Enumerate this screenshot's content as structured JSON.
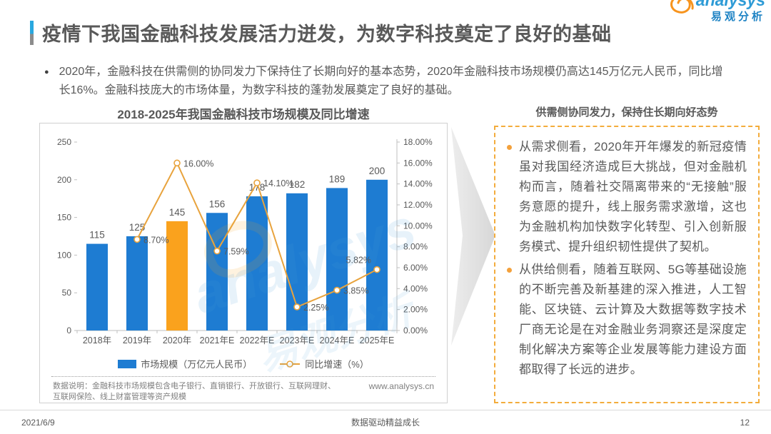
{
  "header": {
    "title": "疫情下我国金融科技发展活力迸发，为数字科技奠定了良好的基础"
  },
  "logo": {
    "brand": "analysys",
    "brand_cn": "易观分析"
  },
  "summary": {
    "text": "2020年，金融科技在供需侧的协同发力下保持住了长期向好的基本态势，2020年金融科技市场规模仍高达145万亿元人民币，同比增长16%。金融科技庞大的市场体量，为数字科技的蓬勃发展奠定了良好的基础。"
  },
  "chart": {
    "note": "数据说明：金融科技市场规模包含电子银行、直销银行、开放银行、互联网理财、互联网保险、线上财富管理等资产规模",
    "url": "www.analysys.cn",
    "watermark_text": "analysys",
    "watermark_text_cn": "易观分析"
  },
  "chart_data": {
    "type": "bar",
    "title": "2018-2025年我国金融科技市场规模及同比增速",
    "categories": [
      "2018年",
      "2019年",
      "2020年",
      "2021年E",
      "2022年E",
      "2023年E",
      "2024年E",
      "2025年E"
    ],
    "series": [
      {
        "name": "市场规模（万亿元人民币）",
        "type": "bar",
        "values": [
          115,
          125,
          145,
          156,
          178,
          182,
          189,
          200
        ],
        "color": "#1E7CD2",
        "highlight_index": 2,
        "highlight_color": "#FAA21D"
      },
      {
        "name": "同比增速（%）",
        "type": "line",
        "values": [
          null,
          8.7,
          16.0,
          7.59,
          14.1,
          2.25,
          3.85,
          5.82
        ],
        "labels": [
          "",
          "8.70%",
          "16.00%",
          "7.59%",
          "14.10%",
          "2.25%",
          "3.85%",
          "5.82%"
        ],
        "color": "#E8A33D",
        "marker_fill": "#FFFFFF"
      }
    ],
    "left_axis": {
      "min": 0,
      "max": 250,
      "step": 50
    },
    "right_axis": {
      "min": 0,
      "max": 18,
      "step": 2,
      "suffix": "%",
      "decimals": 2
    },
    "legend_position": "bottom",
    "grid": false
  },
  "panel": {
    "title": "供需侧协同发力，保持住长期向好态势",
    "bullets": [
      "从需求侧看，2020年开年爆发的新冠疫情虽对我国经济造成巨大挑战，但对金融机构而言，随着社交隔离带来的“无接触”服务意愿的提升，线上服务需求激增，这也为金融机构加快数字化转型、引入创新服务模式、提升组织韧性提供了契机。",
      "从供给侧看，随着互联网、5G等基础设施的不断完善及新基建的深入推进，人工智能、区块链、云计算及大数据等数字技术厂商无论是在对金融业务洞察还是深度定制化解决方案等企业发展等能力建设方面都取得了长远的进步。"
    ]
  },
  "footer": {
    "date": "2021/6/9",
    "center": "数据驱动精益成长",
    "page": "12"
  }
}
